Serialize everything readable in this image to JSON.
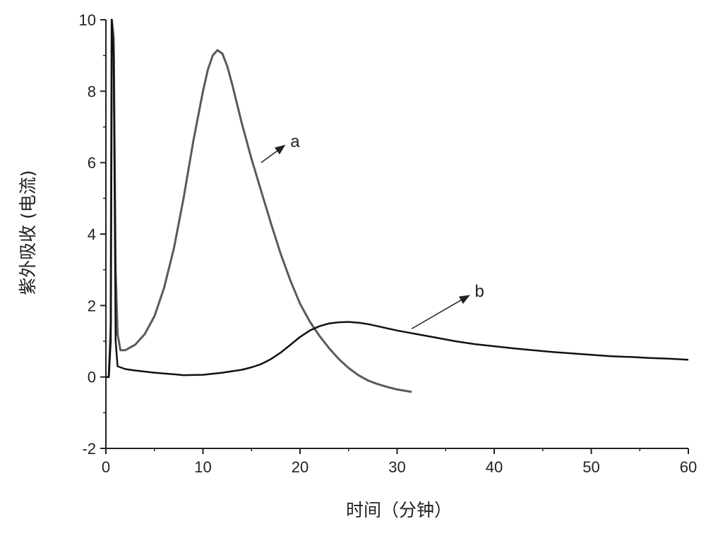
{
  "chart_data": {
    "type": "line",
    "xlabel": "时间（分钟）",
    "ylabel": "紫外吸收 (电流)",
    "xlim": [
      0,
      60
    ],
    "ylim": [
      -2,
      10
    ],
    "x_ticks": [
      0,
      10,
      20,
      30,
      40,
      50,
      60
    ],
    "y_ticks": [
      -2,
      0,
      2,
      4,
      6,
      8,
      10
    ],
    "grid": false,
    "annotations": [
      {
        "label": "a",
        "series": 0,
        "point": [
          16,
          6.0
        ],
        "text_at": [
          19,
          6.6
        ]
      },
      {
        "label": "b",
        "series": 1,
        "point": [
          31.5,
          1.35
        ],
        "text_at": [
          38,
          2.4
        ]
      }
    ],
    "series": [
      {
        "color": "#5a5a5a",
        "x": [
          0,
          0.3,
          0.5,
          0.6,
          0.8,
          1.0,
          1.2,
          1.5,
          2,
          3,
          4,
          5,
          6,
          7,
          8,
          9,
          10,
          10.5,
          11,
          11.5,
          12,
          12.5,
          13,
          14,
          15,
          16,
          17,
          18,
          19,
          20,
          21,
          22,
          23,
          24,
          25,
          26,
          27,
          28,
          29,
          30,
          31.5
        ],
        "y": [
          0,
          0,
          1.5,
          10,
          9.5,
          3.0,
          1.2,
          0.75,
          0.75,
          0.9,
          1.2,
          1.7,
          2.5,
          3.6,
          5.0,
          6.6,
          8.0,
          8.6,
          9.0,
          9.15,
          9.05,
          8.7,
          8.2,
          7.1,
          6.1,
          5.2,
          4.3,
          3.45,
          2.7,
          2.05,
          1.55,
          1.15,
          0.8,
          0.5,
          0.25,
          0.05,
          -0.1,
          -0.2,
          -0.28,
          -0.35,
          -0.42
        ]
      },
      {
        "color": "#111111",
        "x": [
          0,
          0.3,
          0.5,
          0.6,
          0.8,
          1.0,
          1.2,
          2,
          3,
          5,
          8,
          10,
          12,
          14,
          15,
          16,
          17,
          18,
          19,
          20,
          21,
          22,
          23,
          24,
          25,
          26,
          27,
          28,
          29,
          30,
          32,
          34,
          36,
          38,
          40,
          42,
          44,
          46,
          48,
          50,
          52,
          54,
          56,
          58,
          60
        ],
        "y": [
          0,
          0,
          1.0,
          10,
          9.0,
          1.0,
          0.3,
          0.22,
          0.18,
          0.12,
          0.05,
          0.06,
          0.12,
          0.2,
          0.27,
          0.36,
          0.5,
          0.68,
          0.9,
          1.12,
          1.3,
          1.42,
          1.5,
          1.53,
          1.54,
          1.52,
          1.48,
          1.42,
          1.36,
          1.3,
          1.2,
          1.1,
          1.0,
          0.92,
          0.86,
          0.8,
          0.75,
          0.7,
          0.66,
          0.62,
          0.58,
          0.56,
          0.53,
          0.51,
          0.48
        ]
      }
    ]
  }
}
